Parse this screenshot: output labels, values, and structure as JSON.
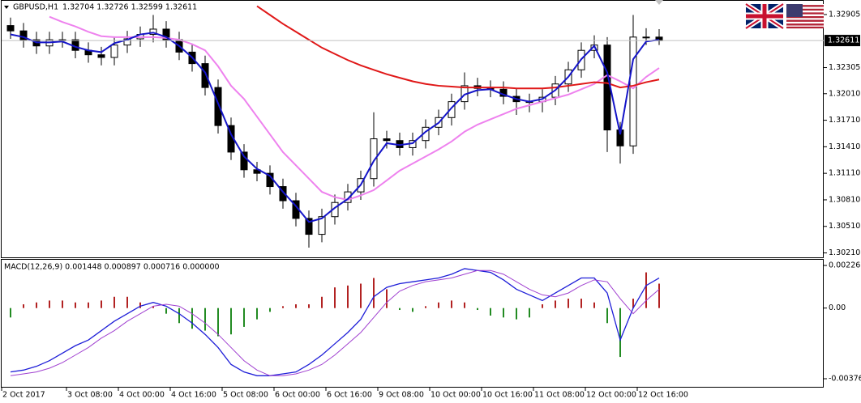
{
  "header": {
    "symbol": "GBPUSD,H1",
    "quote": "1.32704 1.32726 1.32599 1.32611"
  },
  "chart_data": [
    {
      "type": "candlestick",
      "categories": [
        "2 Oct 2017",
        null,
        null,
        null,
        null,
        "3 Oct 08:00",
        null,
        null,
        null,
        "4 Oct 00:00",
        null,
        null,
        null,
        "4 Oct 16:00",
        null,
        null,
        null,
        "5 Oct 08:00",
        null,
        null,
        null,
        "6 Oct 00:00",
        null,
        null,
        null,
        "6 Oct 16:00",
        null,
        null,
        null,
        "9 Oct 08:00",
        null,
        null,
        null,
        "10 Oct 00:00",
        null,
        null,
        null,
        "10 Oct 16:00",
        null,
        null,
        null,
        "11 Oct 08:00",
        null,
        null,
        null,
        "12 Oct 00:00",
        null,
        null,
        null,
        "12 Oct 16:00",
        null
      ],
      "open": [
        1.3278,
        1.3272,
        1.3262,
        1.3255,
        1.3262,
        1.3262,
        1.325,
        1.3245,
        1.3242,
        1.3256,
        1.3263,
        1.3268,
        1.3274,
        1.3262,
        1.3248,
        1.3235,
        1.3208,
        1.3165,
        1.3135,
        1.3115,
        1.3111,
        1.3096,
        1.308,
        1.306,
        1.3042,
        1.3062,
        1.3078,
        1.309,
        1.3105,
        1.315,
        1.3148,
        1.314,
        1.3148,
        1.3163,
        1.3174,
        1.3192,
        1.321,
        1.3207,
        1.3206,
        1.3198,
        1.3192,
        1.3192,
        1.3197,
        1.3212,
        1.3228,
        1.325,
        1.3256,
        1.316,
        1.3142,
        1.3265,
        1.3265
      ],
      "high": [
        1.3287,
        1.3281,
        1.3271,
        1.3271,
        1.3271,
        1.3271,
        1.3259,
        1.3254,
        1.3265,
        1.3272,
        1.3277,
        1.329,
        1.3283,
        1.3271,
        1.3257,
        1.3244,
        1.3217,
        1.3174,
        1.3144,
        1.3124,
        1.312,
        1.3105,
        1.3089,
        1.3069,
        1.3071,
        1.3087,
        1.3099,
        1.3114,
        1.318,
        1.3159,
        1.3157,
        1.3157,
        1.3172,
        1.3183,
        1.3201,
        1.3225,
        1.3219,
        1.3216,
        1.3215,
        1.3207,
        1.3201,
        1.3206,
        1.3221,
        1.3237,
        1.3259,
        1.3267,
        1.3265,
        1.3169,
        1.329,
        1.3275,
        1.3274
      ],
      "low": [
        1.3263,
        1.3253,
        1.3246,
        1.3246,
        1.3253,
        1.3241,
        1.3236,
        1.3233,
        1.3233,
        1.3247,
        1.3254,
        1.3259,
        1.3253,
        1.3239,
        1.3226,
        1.3199,
        1.3156,
        1.3126,
        1.3106,
        1.3102,
        1.3087,
        1.3071,
        1.3051,
        1.3027,
        1.3033,
        1.3053,
        1.3069,
        1.3081,
        1.3096,
        1.3139,
        1.3131,
        1.3131,
        1.3139,
        1.3154,
        1.3165,
        1.3183,
        1.3198,
        1.3197,
        1.3189,
        1.3177,
        1.318,
        1.318,
        1.3188,
        1.3203,
        1.3219,
        1.3241,
        1.3135,
        1.3122,
        1.3133,
        1.3256,
        1.3256
      ],
      "close": [
        1.3272,
        1.3262,
        1.3255,
        1.3262,
        1.3262,
        1.325,
        1.3245,
        1.3242,
        1.3256,
        1.3263,
        1.3268,
        1.3274,
        1.3262,
        1.3248,
        1.3235,
        1.3208,
        1.3165,
        1.3135,
        1.3115,
        1.3111,
        1.3096,
        1.308,
        1.306,
        1.3042,
        1.3062,
        1.3078,
        1.309,
        1.3105,
        1.315,
        1.3148,
        1.314,
        1.3148,
        1.3163,
        1.3174,
        1.3192,
        1.321,
        1.3207,
        1.3206,
        1.3198,
        1.3192,
        1.3192,
        1.3197,
        1.3212,
        1.3228,
        1.325,
        1.3256,
        1.316,
        1.3142,
        1.3265,
        1.3265,
        1.3261
      ],
      "color": "#000000",
      "series": [
        {
          "color": "#ee82ee",
          "values": [
            null,
            null,
            null,
            1.3288,
            1.3282,
            1.3277,
            1.3271,
            1.3266,
            1.3265,
            1.3265,
            1.3265,
            1.3265,
            1.3264,
            1.3262,
            1.3257,
            1.325,
            1.3232,
            1.321,
            1.3195,
            1.3175,
            1.3155,
            1.3135,
            1.312,
            1.3105,
            1.309,
            1.3084,
            1.3081,
            1.3086,
            1.3092,
            1.3103,
            1.3114,
            1.3122,
            1.313,
            1.3138,
            1.3147,
            1.3158,
            1.3166,
            1.3172,
            1.3178,
            1.3184,
            1.3188,
            1.3192,
            1.3196,
            1.32,
            1.3206,
            1.3212,
            1.3222,
            1.3215,
            1.3207,
            1.322,
            1.323
          ]
        },
        {
          "color": "#e01818",
          "values": [
            null,
            null,
            null,
            null,
            null,
            null,
            null,
            null,
            null,
            null,
            null,
            null,
            null,
            null,
            null,
            null,
            null,
            null,
            null,
            1.33,
            1.329,
            1.328,
            1.3271,
            1.3262,
            1.3253,
            1.3246,
            1.3239,
            1.3233,
            1.3228,
            1.3223,
            1.3219,
            1.3215,
            1.3212,
            1.321,
            1.3209,
            1.3208,
            1.3208,
            1.3208,
            1.3208,
            1.3207,
            1.3207,
            1.3207,
            1.3208,
            1.321,
            1.3212,
            1.3214,
            1.3213,
            1.3208,
            1.321,
            1.3214,
            1.3217
          ]
        },
        {
          "color": "#1414c8",
          "values": [
            1.3268,
            1.3265,
            1.3259,
            1.3259,
            1.326,
            1.3254,
            1.325,
            1.3248,
            1.3258,
            1.3262,
            1.3268,
            1.327,
            1.3265,
            1.3255,
            1.3242,
            1.3225,
            1.319,
            1.3155,
            1.313,
            1.3116,
            1.3108,
            1.309,
            1.3074,
            1.3056,
            1.306,
            1.3072,
            1.3082,
            1.3098,
            1.3125,
            1.3145,
            1.3143,
            1.3145,
            1.3158,
            1.3168,
            1.3185,
            1.32,
            1.3205,
            1.3206,
            1.32,
            1.3195,
            1.3192,
            1.3195,
            1.3205,
            1.322,
            1.324,
            1.3255,
            1.3225,
            1.3155,
            1.324,
            1.326,
            1.3262
          ]
        }
      ],
      "ylim": [
        1.3016,
        1.3306
      ],
      "yticks": [
        1.32905,
        1.32305,
        {
          "value": 1.3201,
          "label": "1.32010"
        },
        {
          "value": 1.3171,
          "label": "1.31710"
        },
        {
          "value": 1.3141,
          "label": "1.31410"
        },
        {
          "value": 1.3111,
          "label": "1.31110"
        },
        {
          "value": 1.3081,
          "label": "1.30810"
        },
        {
          "value": 1.3051,
          "label": "1.30510"
        },
        {
          "value": 1.3021,
          "label": "1.30210"
        }
      ],
      "current_price": 1.32611,
      "grid": false
    },
    {
      "type": "macd",
      "title": "MACD(12,26,9) 0.001448 0.000897 0.000716 0.000000",
      "values": [
        -0.0005,
        0.0002,
        0.0003,
        0.0004,
        0.0004,
        0.0003,
        0.0003,
        0.0004,
        0.0006,
        0.0006,
        0.0003,
        0.0001,
        -0.0003,
        -0.0008,
        -0.0011,
        -0.0012,
        -0.0015,
        -0.0014,
        -0.001,
        -0.0006,
        -0.0002,
        0.0001,
        0.0002,
        0.0002,
        0.0006,
        0.0011,
        0.0012,
        0.0013,
        0.0016,
        0.001,
        -0.0001,
        -0.0002,
        0.0001,
        0.0003,
        0.0004,
        0.0003,
        -0.0001,
        -0.0004,
        -0.0005,
        -0.0006,
        -0.0005,
        0.0002,
        0.0004,
        0.0005,
        0.0005,
        0.0003,
        -0.0008,
        -0.0026,
        0.0005,
        0.0019,
        0.0013
      ],
      "up_color": "#b22222",
      "down_color": "#228b22",
      "series": [
        {
          "color": "#1e1ed8",
          "values": [
            -0.0034,
            -0.0033,
            -0.0031,
            -0.0028,
            -0.0024,
            -0.002,
            -0.0017,
            -0.0012,
            -0.0007,
            -0.0003,
            0.0001,
            0.0003,
            0.0001,
            -0.0003,
            -0.0008,
            -0.0014,
            -0.0021,
            -0.003,
            -0.0034,
            -0.0036,
            -0.0036,
            -0.0035,
            -0.0034,
            -0.003,
            -0.0025,
            -0.0019,
            -0.0013,
            -0.0006,
            0.0006,
            0.0011,
            0.0013,
            0.0014,
            0.0015,
            0.0016,
            0.0018,
            0.0021,
            0.002,
            0.0019,
            0.0015,
            0.001,
            0.0007,
            0.0004,
            0.0008,
            0.0012,
            0.0016,
            0.0016,
            0.0008,
            -0.0017,
            0.0,
            0.0012,
            0.0016
          ]
        },
        {
          "color": "#a040d0",
          "values": [
            -0.0036,
            -0.0035,
            -0.0034,
            -0.0032,
            -0.0029,
            -0.0025,
            -0.0021,
            -0.0016,
            -0.0012,
            -0.0007,
            -0.0003,
            0.0001,
            0.0002,
            0.0001,
            -0.0003,
            -0.0008,
            -0.0014,
            -0.0021,
            -0.0028,
            -0.0033,
            -0.0036,
            -0.0036,
            -0.0035,
            -0.0033,
            -0.003,
            -0.0025,
            -0.0019,
            -0.0013,
            -0.0005,
            0.0003,
            0.0009,
            0.0012,
            0.0014,
            0.0015,
            0.0016,
            0.0018,
            0.002,
            0.002,
            0.0018,
            0.0014,
            0.001,
            0.0007,
            0.0006,
            0.0008,
            0.0012,
            0.0015,
            0.0014,
            0.0005,
            -0.0003,
            0.0004,
            0.001
          ]
        }
      ],
      "ylim": [
        -0.00419,
        0.00257
      ],
      "yticks": [
        0.002267,
        {
          "value": 0,
          "label": "0.00"
        },
        -0.00376
      ]
    }
  ]
}
